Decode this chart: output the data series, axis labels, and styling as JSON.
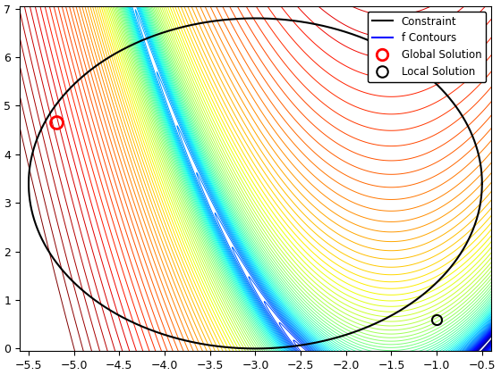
{
  "xlim": [
    -5.6,
    -0.4
  ],
  "ylim": [
    -0.05,
    7.05
  ],
  "xticks": [
    -5.5,
    -5.0,
    -4.5,
    -4.0,
    -3.5,
    -3.0,
    -2.5,
    -2.0,
    -1.5,
    -1.0,
    -0.5
  ],
  "yticks": [
    0,
    1,
    2,
    3,
    4,
    5,
    6,
    7
  ],
  "global_solution": [
    -5.19,
    4.65
  ],
  "local_solution": [
    -1.0,
    0.6
  ],
  "n_contours": 80,
  "figsize": [
    5.6,
    4.2
  ],
  "dpi": 100
}
